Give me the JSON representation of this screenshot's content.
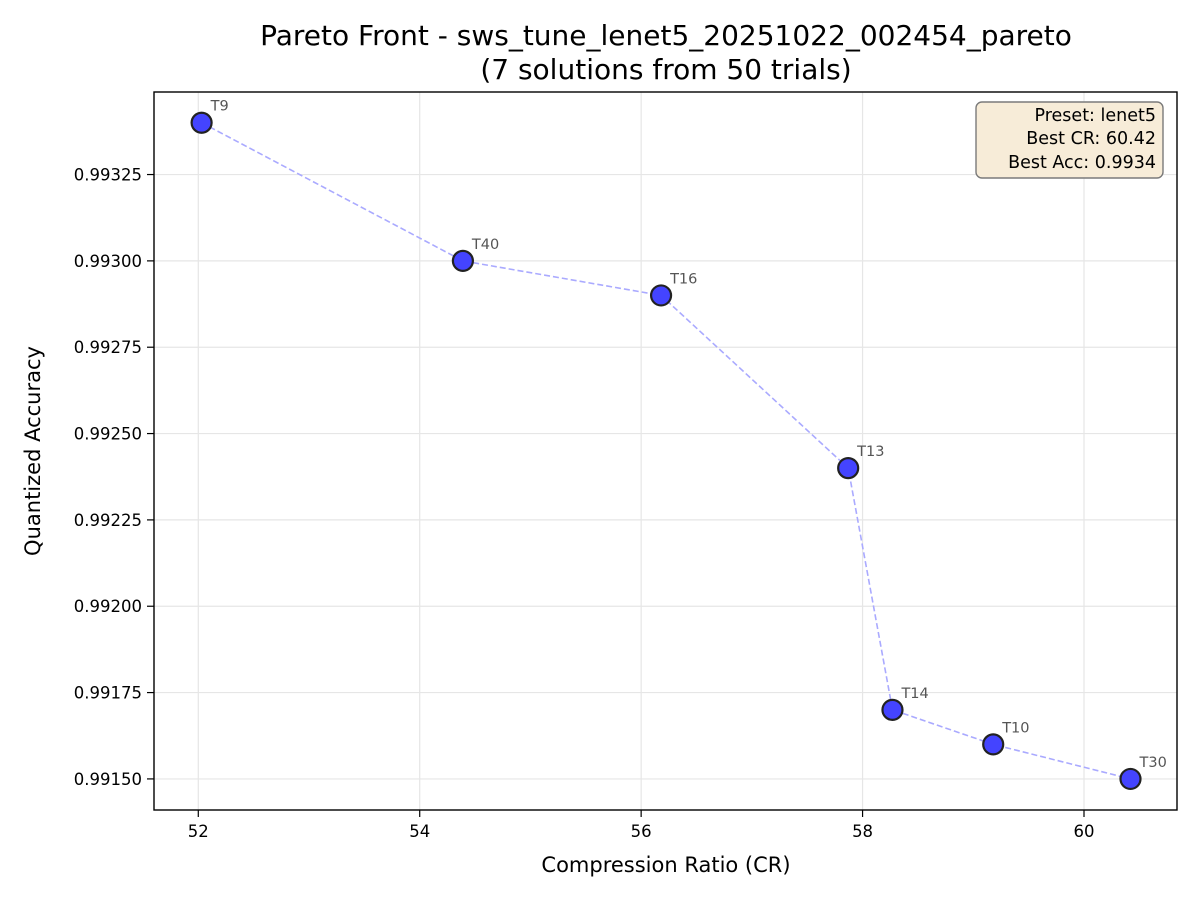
{
  "chart_data": {
    "type": "scatter",
    "title": "Pareto Front - sws_tune_lenet5_20251022_002454_pareto",
    "subtitle": "(7 solutions from 50 trials)",
    "xlabel": "Compression Ratio (CR)",
    "ylabel": "Quantized Accuracy",
    "xlim": [
      51.6,
      60.84
    ],
    "ylim": [
      0.99141,
      0.993489
    ],
    "xticks": [
      52,
      54,
      56,
      58,
      60
    ],
    "xtick_labels": [
      "52",
      "54",
      "56",
      "58",
      "60"
    ],
    "yticks": [
      0.9915,
      0.99175,
      0.992,
      0.99225,
      0.9925,
      0.99275,
      0.993,
      0.99325
    ],
    "ytick_labels": [
      "0.99150",
      "0.99175",
      "0.99200",
      "0.99225",
      "0.99250",
      "0.99275",
      "0.99300",
      "0.99325"
    ],
    "grid": true,
    "connect_line": "dashed",
    "series": [
      {
        "points": [
          {
            "label": "T9",
            "x": 52.03,
            "y": 0.9934
          },
          {
            "label": "T40",
            "x": 54.39,
            "y": 0.993
          },
          {
            "label": "T16",
            "x": 56.18,
            "y": 0.9929
          },
          {
            "label": "T13",
            "x": 57.87,
            "y": 0.9924
          },
          {
            "label": "T14",
            "x": 58.27,
            "y": 0.9917
          },
          {
            "label": "T10",
            "x": 59.18,
            "y": 0.9916
          },
          {
            "label": "T30",
            "x": 60.42,
            "y": 0.9915
          }
        ]
      }
    ],
    "info_box": {
      "lines": [
        "Preset: lenet5",
        "Best CR: 60.42",
        "Best Acc: 0.9934"
      ],
      "placement": "top-right"
    },
    "colors": {
      "marker_fill": "#4444ff",
      "marker_edge": "#222222",
      "line": "#aaaaff",
      "grid": "#e6e6e6",
      "box_fill": "#f7ecd8",
      "box_edge": "#7a7a7a",
      "point_label": "#555555"
    }
  }
}
